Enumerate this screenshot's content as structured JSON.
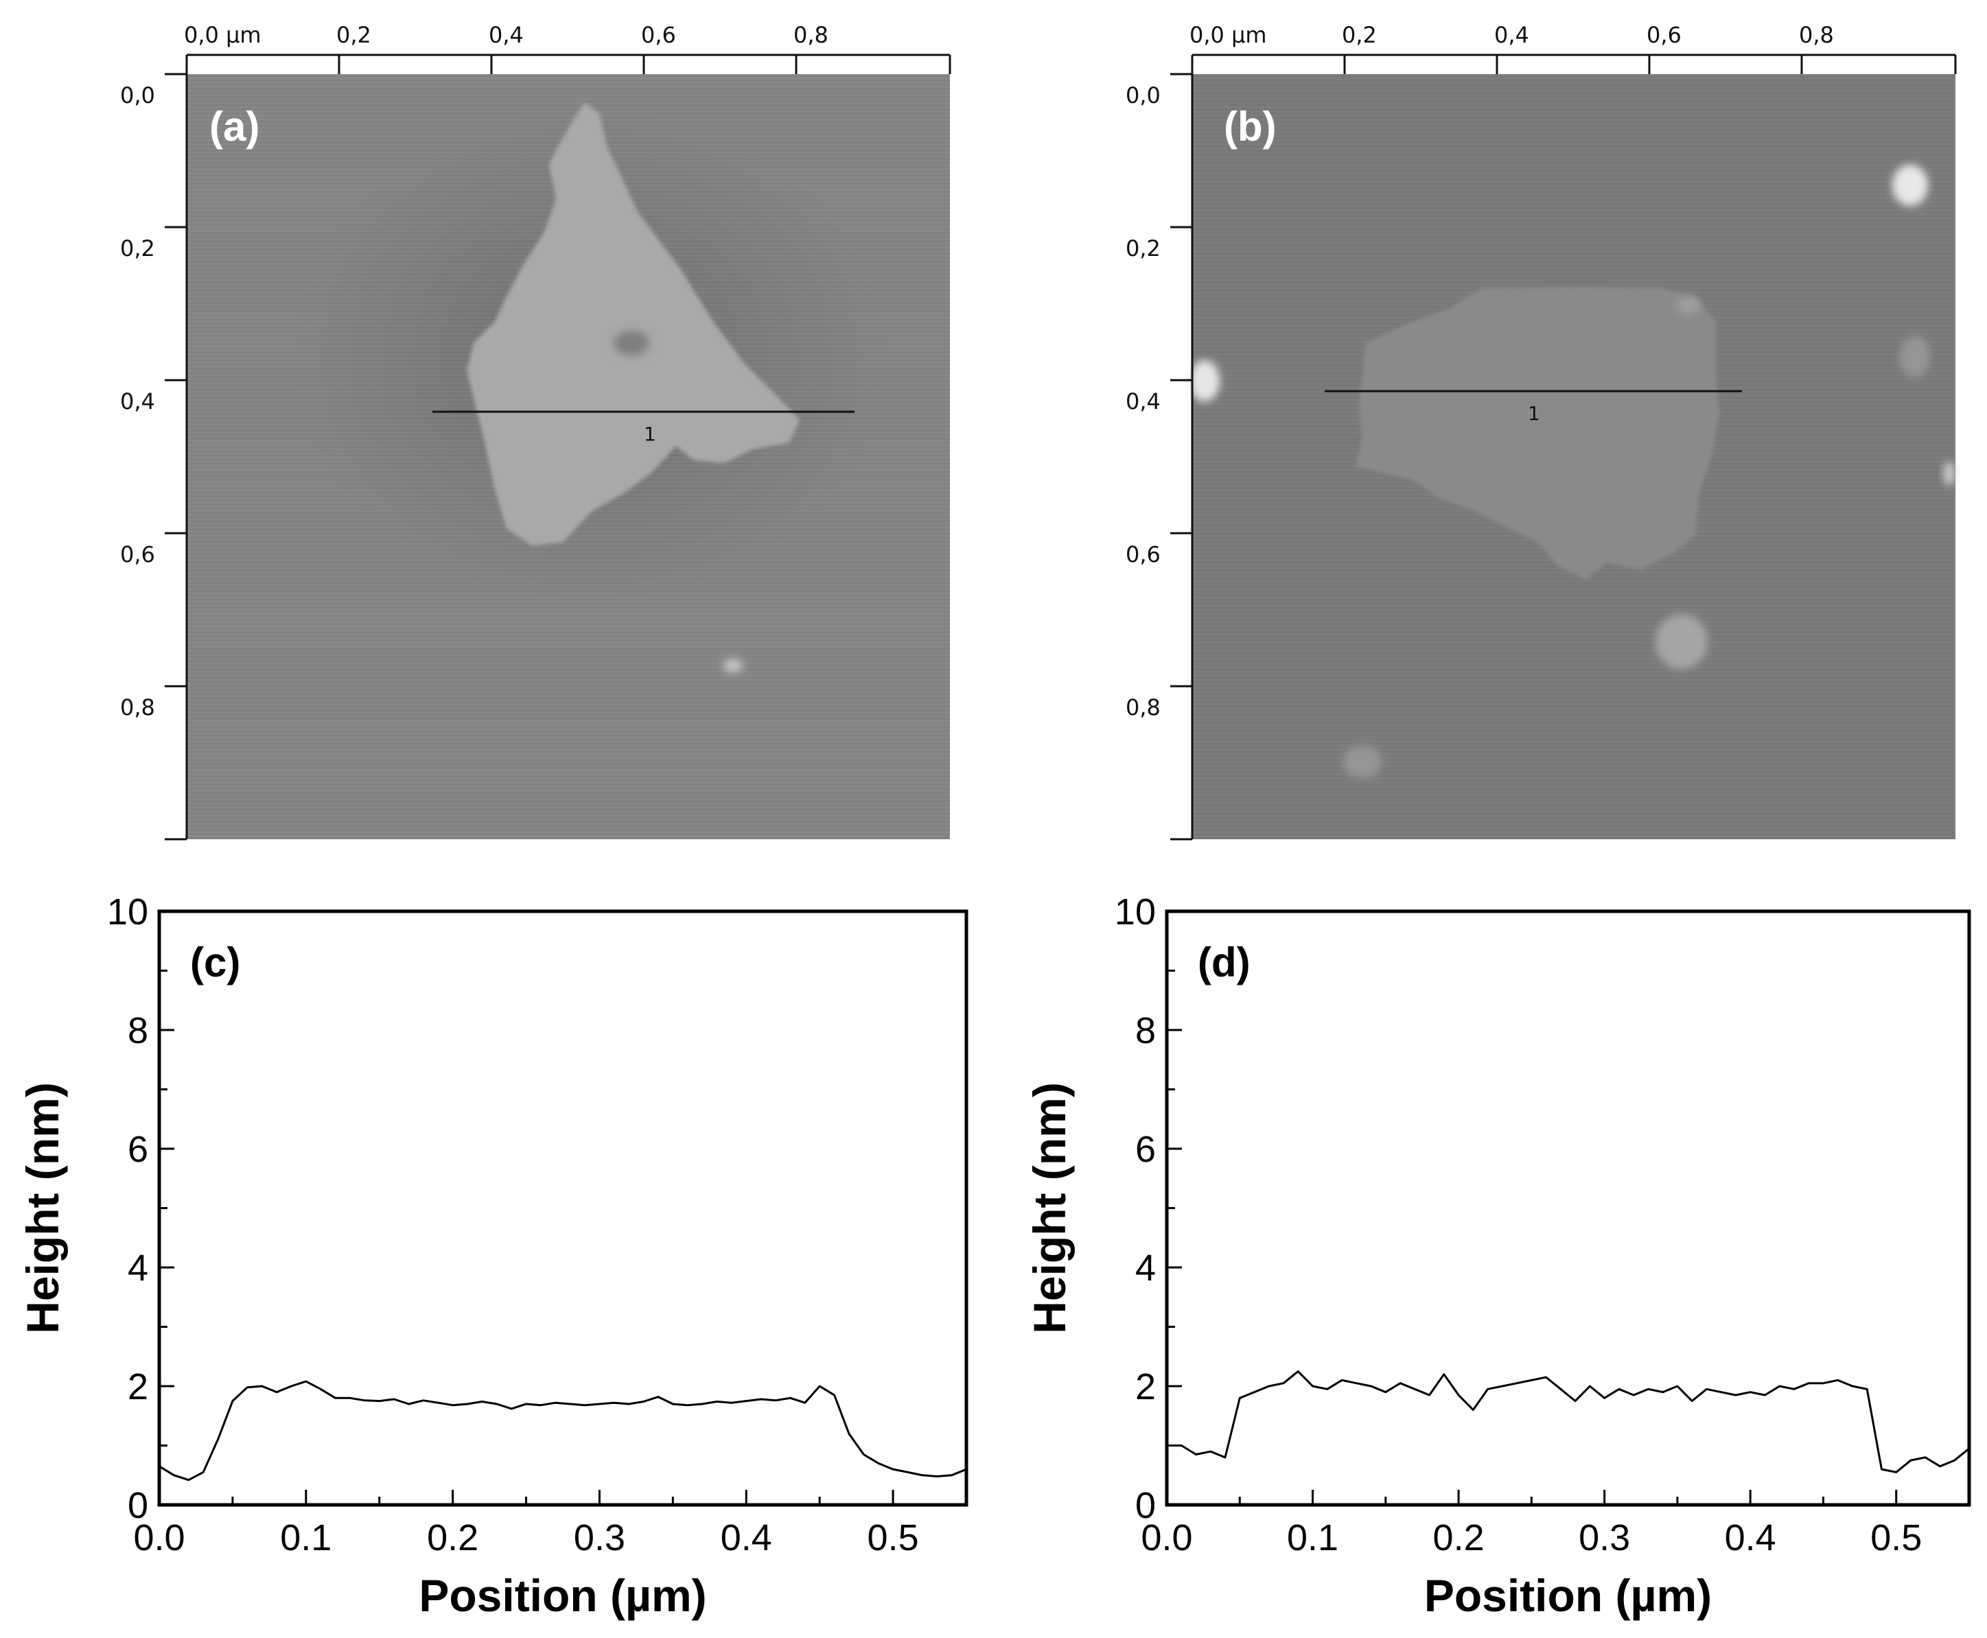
{
  "afm_images": [
    {
      "label": "(a)",
      "x_ticks": [
        "0,0 µm",
        "0,2",
        "0,4",
        "0,6",
        "0,8"
      ],
      "y_ticks": [
        "0,0",
        "0,2",
        "0,4",
        "0,6",
        "0,8"
      ],
      "line_label": "1",
      "x_range_um": [
        0,
        1
      ],
      "y_range_um": [
        0,
        1
      ]
    },
    {
      "label": "(b)",
      "x_ticks": [
        "0,0 µm",
        "0,2",
        "0,4",
        "0,6",
        "0,8"
      ],
      "y_ticks": [
        "0,0",
        "0,2",
        "0,4",
        "0,6",
        "0,8"
      ],
      "line_label": "1",
      "x_range_um": [
        0,
        1
      ],
      "y_range_um": [
        0,
        1
      ]
    }
  ],
  "chart_data": [
    {
      "type": "line",
      "label": "(c)",
      "xlabel": "Position (µm)",
      "ylabel": "Height (nm)",
      "xlim": [
        0,
        0.55
      ],
      "ylim": [
        0,
        10
      ],
      "xticks": [
        "0.0",
        "0.1",
        "0.2",
        "0.3",
        "0.4",
        "0.5"
      ],
      "yticks": [
        "0",
        "2",
        "4",
        "6",
        "8",
        "10"
      ],
      "series": [
        {
          "x": [
            0,
            0.01,
            0.02,
            0.03,
            0.04,
            0.05,
            0.06,
            0.07,
            0.08,
            0.09,
            0.1,
            0.11,
            0.12,
            0.13,
            0.14,
            0.15,
            0.16,
            0.17,
            0.18,
            0.19,
            0.2,
            0.21,
            0.22,
            0.23,
            0.24,
            0.25,
            0.26,
            0.27,
            0.28,
            0.29,
            0.3,
            0.31,
            0.32,
            0.33,
            0.34,
            0.35,
            0.36,
            0.37,
            0.38,
            0.39,
            0.4,
            0.41,
            0.42,
            0.43,
            0.44,
            0.45,
            0.46,
            0.47,
            0.48,
            0.49,
            0.5,
            0.51,
            0.52,
            0.53,
            0.54,
            0.55
          ],
          "y": [
            0.65,
            0.5,
            0.42,
            0.55,
            1.1,
            1.75,
            1.98,
            2.0,
            1.9,
            2.0,
            2.08,
            1.95,
            1.8,
            1.8,
            1.76,
            1.75,
            1.78,
            1.7,
            1.76,
            1.72,
            1.68,
            1.7,
            1.74,
            1.7,
            1.62,
            1.7,
            1.68,
            1.72,
            1.7,
            1.68,
            1.7,
            1.72,
            1.7,
            1.74,
            1.82,
            1.7,
            1.68,
            1.7,
            1.74,
            1.72,
            1.75,
            1.78,
            1.76,
            1.8,
            1.72,
            2.0,
            1.85,
            1.2,
            0.85,
            0.7,
            0.6,
            0.55,
            0.5,
            0.48,
            0.5,
            0.6
          ]
        }
      ]
    },
    {
      "type": "line",
      "label": "(d)",
      "xlabel": "Position (µm)",
      "ylabel": "Height (nm)",
      "xlim": [
        0,
        0.55
      ],
      "ylim": [
        0,
        10
      ],
      "xticks": [
        "0.0",
        "0.1",
        "0.2",
        "0.3",
        "0.4",
        "0.5"
      ],
      "yticks": [
        "0",
        "2",
        "4",
        "6",
        "8",
        "10"
      ],
      "series": [
        {
          "x": [
            0,
            0.01,
            0.02,
            0.03,
            0.04,
            0.05,
            0.06,
            0.07,
            0.08,
            0.09,
            0.1,
            0.11,
            0.12,
            0.13,
            0.14,
            0.15,
            0.16,
            0.17,
            0.18,
            0.19,
            0.2,
            0.21,
            0.22,
            0.23,
            0.24,
            0.25,
            0.26,
            0.27,
            0.28,
            0.29,
            0.3,
            0.31,
            0.32,
            0.33,
            0.34,
            0.35,
            0.36,
            0.37,
            0.38,
            0.39,
            0.4,
            0.41,
            0.42,
            0.43,
            0.44,
            0.45,
            0.46,
            0.47,
            0.48,
            0.49,
            0.5,
            0.51,
            0.52,
            0.53,
            0.54,
            0.55
          ],
          "y": [
            1.0,
            1.0,
            0.85,
            0.9,
            0.8,
            1.8,
            1.9,
            2.0,
            2.05,
            2.25,
            2.0,
            1.95,
            2.1,
            2.05,
            2.0,
            1.9,
            2.05,
            1.95,
            1.85,
            2.2,
            1.85,
            1.6,
            1.95,
            2.0,
            2.05,
            2.1,
            2.15,
            1.95,
            1.75,
            2.0,
            1.8,
            1.95,
            1.85,
            1.95,
            1.9,
            2.0,
            1.75,
            1.95,
            1.9,
            1.85,
            1.9,
            1.85,
            2.0,
            1.95,
            2.05,
            2.05,
            2.1,
            2.0,
            1.95,
            0.6,
            0.55,
            0.75,
            0.8,
            0.65,
            0.75,
            0.95
          ]
        }
      ]
    }
  ]
}
